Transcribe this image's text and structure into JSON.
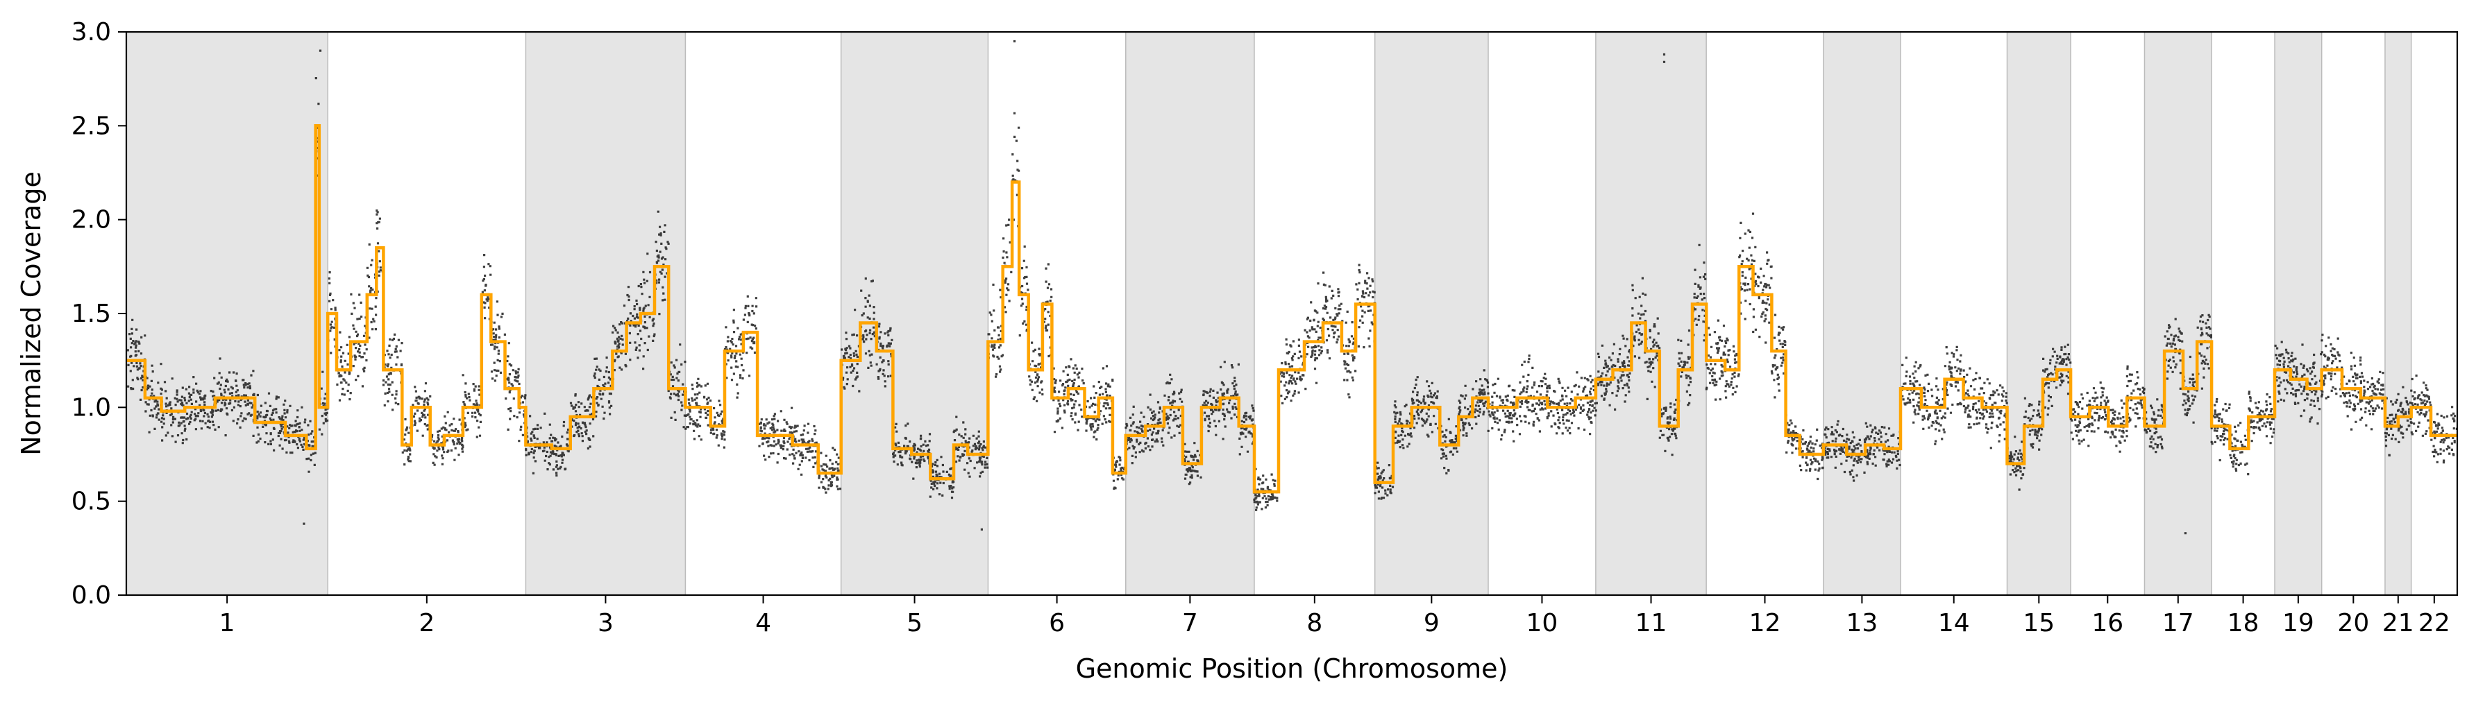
{
  "chart_data": {
    "type": "scatter",
    "xlabel": "Genomic Position (Chromosome)",
    "ylabel": "Normalized Coverage",
    "ylim": [
      0,
      3
    ],
    "yticks": [
      "0.0",
      "0.5",
      "1.0",
      "1.5",
      "2.0",
      "2.5",
      "3.0"
    ],
    "grid": false,
    "colors": {
      "points": "#000000",
      "segments": "#FFA500",
      "shade": "#E5E5E5",
      "shade_edge": "#BBBBBB"
    },
    "chromosomes": [
      {
        "label": "1",
        "start": 0.0,
        "end": 8.62,
        "shaded": true
      },
      {
        "label": "2",
        "start": 8.62,
        "end": 17.09,
        "shaded": false
      },
      {
        "label": "3",
        "start": 17.09,
        "end": 23.92,
        "shaded": true
      },
      {
        "label": "4",
        "start": 23.92,
        "end": 30.58,
        "shaded": false
      },
      {
        "label": "5",
        "start": 30.58,
        "end": 36.87,
        "shaded": true
      },
      {
        "label": "6",
        "start": 36.87,
        "end": 42.76,
        "shaded": false
      },
      {
        "label": "7",
        "start": 42.76,
        "end": 48.26,
        "shaded": true
      },
      {
        "label": "8",
        "start": 48.26,
        "end": 53.42,
        "shaded": false
      },
      {
        "label": "9",
        "start": 53.42,
        "end": 58.27,
        "shaded": true
      },
      {
        "label": "10",
        "start": 58.27,
        "end": 62.87,
        "shaded": false
      },
      {
        "label": "11",
        "start": 62.87,
        "end": 67.6,
        "shaded": true
      },
      {
        "label": "12",
        "start": 67.6,
        "end": 72.61,
        "shaded": false
      },
      {
        "label": "13",
        "start": 72.61,
        "end": 75.91,
        "shaded": true
      },
      {
        "label": "14",
        "start": 75.91,
        "end": 80.47,
        "shaded": false
      },
      {
        "label": "15",
        "start": 80.47,
        "end": 83.19,
        "shaded": true
      },
      {
        "label": "16",
        "start": 83.19,
        "end": 86.35,
        "shaded": false
      },
      {
        "label": "17",
        "start": 86.35,
        "end": 89.22,
        "shaded": true
      },
      {
        "label": "18",
        "start": 89.22,
        "end": 91.92,
        "shaded": false
      },
      {
        "label": "19",
        "start": 91.92,
        "end": 93.93,
        "shaded": true
      },
      {
        "label": "20",
        "start": 93.93,
        "end": 96.64,
        "shaded": false
      },
      {
        "label": "21",
        "start": 96.64,
        "end": 97.76,
        "shaded": true
      },
      {
        "label": "22",
        "start": 97.76,
        "end": 99.73,
        "shaded": false
      }
    ],
    "segments": [
      [
        0.0,
        0.8,
        1.25
      ],
      [
        0.8,
        1.5,
        1.05
      ],
      [
        1.5,
        2.5,
        0.98
      ],
      [
        2.5,
        3.8,
        1.0
      ],
      [
        3.8,
        4.4,
        1.05
      ],
      [
        4.4,
        5.5,
        1.05
      ],
      [
        5.5,
        6.8,
        0.92
      ],
      [
        6.8,
        7.7,
        0.85
      ],
      [
        7.7,
        8.1,
        0.78
      ],
      [
        8.1,
        8.25,
        2.5
      ],
      [
        8.25,
        8.62,
        1.0
      ],
      [
        8.62,
        9.0,
        1.5
      ],
      [
        9.0,
        9.6,
        1.2
      ],
      [
        9.6,
        10.3,
        1.35
      ],
      [
        10.3,
        10.7,
        1.6
      ],
      [
        10.7,
        11.0,
        1.85
      ],
      [
        11.0,
        11.8,
        1.2
      ],
      [
        11.8,
        12.2,
        0.8
      ],
      [
        12.2,
        13.0,
        1.0
      ],
      [
        13.0,
        13.6,
        0.8
      ],
      [
        13.6,
        14.4,
        0.85
      ],
      [
        14.4,
        15.2,
        1.0
      ],
      [
        15.2,
        15.6,
        1.6
      ],
      [
        15.6,
        16.2,
        1.35
      ],
      [
        16.2,
        16.8,
        1.1
      ],
      [
        16.8,
        17.09,
        1.0
      ],
      [
        17.09,
        18.2,
        0.8
      ],
      [
        18.2,
        19.0,
        0.78
      ],
      [
        19.0,
        20.0,
        0.95
      ],
      [
        20.0,
        20.8,
        1.1
      ],
      [
        20.8,
        21.4,
        1.3
      ],
      [
        21.4,
        22.0,
        1.45
      ],
      [
        22.0,
        22.6,
        1.5
      ],
      [
        22.6,
        23.2,
        1.75
      ],
      [
        23.2,
        23.92,
        1.1
      ],
      [
        23.92,
        25.0,
        1.0
      ],
      [
        25.0,
        25.6,
        0.9
      ],
      [
        25.6,
        26.4,
        1.3
      ],
      [
        26.4,
        27.0,
        1.4
      ],
      [
        27.0,
        28.5,
        0.85
      ],
      [
        28.5,
        29.6,
        0.8
      ],
      [
        29.6,
        30.58,
        0.65
      ],
      [
        30.58,
        31.4,
        1.25
      ],
      [
        31.4,
        32.1,
        1.45
      ],
      [
        32.1,
        32.8,
        1.3
      ],
      [
        32.8,
        33.6,
        0.78
      ],
      [
        33.6,
        34.4,
        0.75
      ],
      [
        34.4,
        35.4,
        0.62
      ],
      [
        35.4,
        36.0,
        0.8
      ],
      [
        36.0,
        36.87,
        0.75
      ],
      [
        36.87,
        37.5,
        1.35
      ],
      [
        37.5,
        37.9,
        1.75
      ],
      [
        37.9,
        38.2,
        2.2
      ],
      [
        38.2,
        38.6,
        1.6
      ],
      [
        38.6,
        39.2,
        1.2
      ],
      [
        39.2,
        39.6,
        1.55
      ],
      [
        39.6,
        40.3,
        1.05
      ],
      [
        40.3,
        41.0,
        1.1
      ],
      [
        41.0,
        41.6,
        0.95
      ],
      [
        41.6,
        42.2,
        1.05
      ],
      [
        42.2,
        42.76,
        0.65
      ],
      [
        42.76,
        43.6,
        0.85
      ],
      [
        43.6,
        44.4,
        0.9
      ],
      [
        44.4,
        45.2,
        1.0
      ],
      [
        45.2,
        46.0,
        0.7
      ],
      [
        46.0,
        46.8,
        1.0
      ],
      [
        46.8,
        47.6,
        1.05
      ],
      [
        47.6,
        48.26,
        0.9
      ],
      [
        48.26,
        49.3,
        0.55
      ],
      [
        49.3,
        50.4,
        1.2
      ],
      [
        50.4,
        51.2,
        1.35
      ],
      [
        51.2,
        52.0,
        1.45
      ],
      [
        52.0,
        52.6,
        1.3
      ],
      [
        52.6,
        53.42,
        1.55
      ],
      [
        53.42,
        54.2,
        0.6
      ],
      [
        54.2,
        55.0,
        0.9
      ],
      [
        55.0,
        56.2,
        1.0
      ],
      [
        56.2,
        57.0,
        0.8
      ],
      [
        57.0,
        57.6,
        0.95
      ],
      [
        57.6,
        58.27,
        1.05
      ],
      [
        58.27,
        59.5,
        1.0
      ],
      [
        59.5,
        60.8,
        1.05
      ],
      [
        60.8,
        62.0,
        1.0
      ],
      [
        62.0,
        62.87,
        1.05
      ],
      [
        62.87,
        63.6,
        1.15
      ],
      [
        63.6,
        64.4,
        1.2
      ],
      [
        64.4,
        65.0,
        1.45
      ],
      [
        65.0,
        65.6,
        1.3
      ],
      [
        65.6,
        66.4,
        0.9
      ],
      [
        66.4,
        67.0,
        1.2
      ],
      [
        67.0,
        67.6,
        1.55
      ],
      [
        67.6,
        68.4,
        1.25
      ],
      [
        68.4,
        69.0,
        1.2
      ],
      [
        69.0,
        69.6,
        1.75
      ],
      [
        69.6,
        70.4,
        1.6
      ],
      [
        70.4,
        71.0,
        1.3
      ],
      [
        71.0,
        71.6,
        0.85
      ],
      [
        71.6,
        72.61,
        0.75
      ],
      [
        72.61,
        73.6,
        0.8
      ],
      [
        73.6,
        74.4,
        0.75
      ],
      [
        74.4,
        75.2,
        0.8
      ],
      [
        75.2,
        75.91,
        0.78
      ],
      [
        75.91,
        76.8,
        1.1
      ],
      [
        76.8,
        77.8,
        1.0
      ],
      [
        77.8,
        78.6,
        1.15
      ],
      [
        78.6,
        79.4,
        1.05
      ],
      [
        79.4,
        80.47,
        1.0
      ],
      [
        80.47,
        81.2,
        0.7
      ],
      [
        81.2,
        82.0,
        0.9
      ],
      [
        82.0,
        82.6,
        1.15
      ],
      [
        82.6,
        83.19,
        1.2
      ],
      [
        83.19,
        84.0,
        0.95
      ],
      [
        84.0,
        84.8,
        1.0
      ],
      [
        84.8,
        85.6,
        0.9
      ],
      [
        85.6,
        86.35,
        1.05
      ],
      [
        86.35,
        87.2,
        0.9
      ],
      [
        87.2,
        88.0,
        1.3
      ],
      [
        88.0,
        88.6,
        1.1
      ],
      [
        88.6,
        89.22,
        1.35
      ],
      [
        89.22,
        90.0,
        0.9
      ],
      [
        90.0,
        90.8,
        0.78
      ],
      [
        90.8,
        91.92,
        0.95
      ],
      [
        91.92,
        92.6,
        1.2
      ],
      [
        92.6,
        93.3,
        1.15
      ],
      [
        93.3,
        93.93,
        1.1
      ],
      [
        93.93,
        94.8,
        1.2
      ],
      [
        94.8,
        95.6,
        1.1
      ],
      [
        95.6,
        96.64,
        1.05
      ],
      [
        96.64,
        97.2,
        0.9
      ],
      [
        97.2,
        97.76,
        0.95
      ],
      [
        97.76,
        98.6,
        1.0
      ],
      [
        98.6,
        99.73,
        0.85
      ]
    ],
    "outliers": [
      [
        7.6,
        0.38
      ],
      [
        36.6,
        0.35
      ],
      [
        65.8,
        2.88
      ],
      [
        65.8,
        2.84
      ],
      [
        88.1,
        0.33
      ],
      [
        8.3,
        2.9
      ],
      [
        38.0,
        2.95
      ]
    ]
  }
}
